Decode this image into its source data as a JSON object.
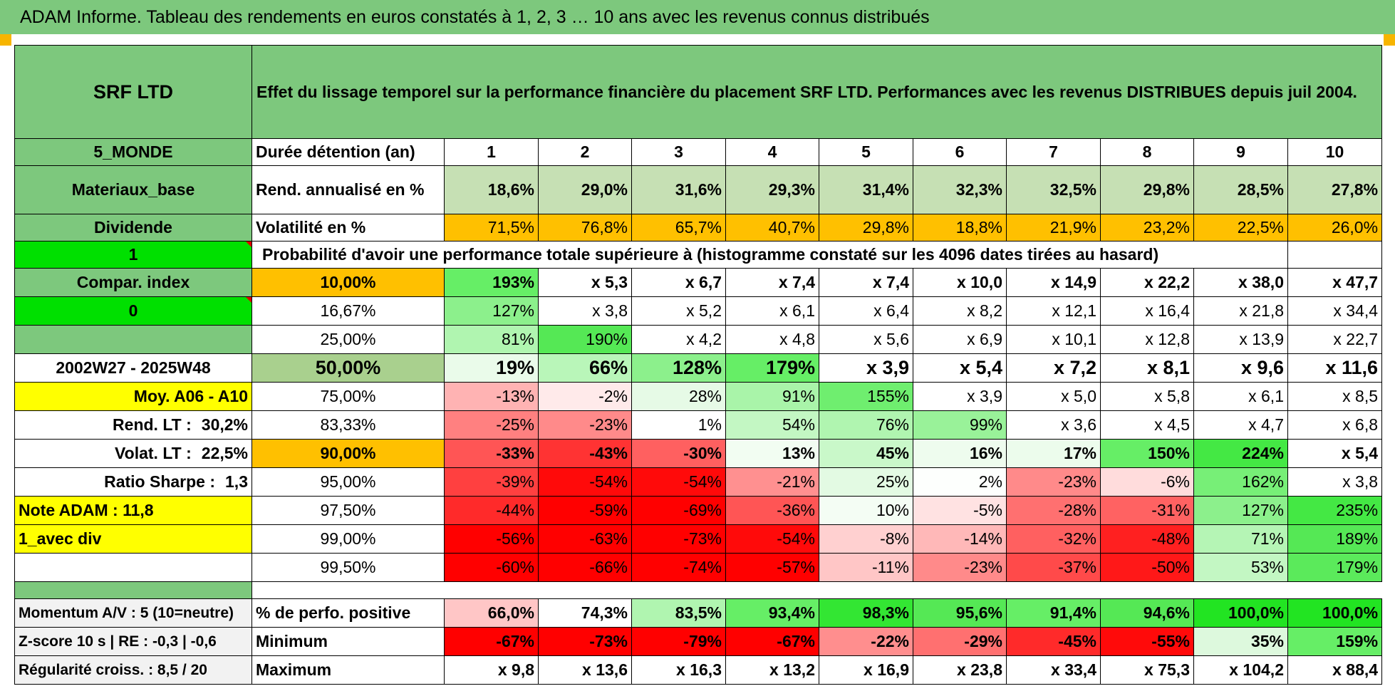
{
  "title": "ADAM Informe. Tableau des rendements en euros constatés à 1, 2, 3 … 10 ans avec les revenus connus distribués",
  "colors": {
    "header_green": "#7dc87d",
    "bright_green": "#00e000",
    "yellow": "#ffff00",
    "orange": "#ffc000",
    "light_green_cell": "#c6e0b4",
    "red_text": "#e00000"
  },
  "header": {
    "fund": "SRF LTD",
    "description": "Effet du lissage temporel sur la performance financière du placement SRF LTD. Performances avec les revenus DISTRIBUES depuis juil 2004."
  },
  "left_col": {
    "region": "5_MONDE",
    "sector": "Materiaux_base",
    "income": "Dividende",
    "sel1": "1",
    "compar": "Compar. index",
    "sel2": "0",
    "period": "2002W27 - 2025W48",
    "moy": "Moy. A06 - A10",
    "rend_label": "Rend. LT :",
    "rend_value": "30,2%",
    "volat_label": "Volat. LT :",
    "volat_value": "22,5%",
    "sharpe_label": "Ratio Sharpe :",
    "sharpe_value": "1,3",
    "note": "Note ADAM : 11,8",
    "avec": "1_avec div",
    "momentum": "Momentum A/V : 5 (10=neutre)",
    "zscore": "Z-score 10 s | RE : -0,3 | -0,6",
    "regularite": "Régularité croiss. : 8,5 / 20"
  },
  "labels": {
    "duree": "Durée détention (an)",
    "rend": "Rend. annualisé en %",
    "volat": "Volatilité en %",
    "proba": "Probabilité d'avoir une performance totale supérieure à (histogramme constaté sur les 4096 dates tirées au hasard)",
    "positive": "% de perfo. positive",
    "minimum": "Minimum",
    "maximum": "Maximum"
  },
  "years": [
    "1",
    "2",
    "3",
    "4",
    "5",
    "6",
    "7",
    "8",
    "9",
    "10"
  ],
  "rend": [
    "18,6%",
    "29,0%",
    "31,6%",
    "29,3%",
    "31,4%",
    "32,3%",
    "32,5%",
    "29,8%",
    "28,5%",
    "27,8%"
  ],
  "volat": [
    "71,5%",
    "76,8%",
    "65,7%",
    "40,7%",
    "29,8%",
    "18,8%",
    "21,9%",
    "23,2%",
    "22,5%",
    "26,0%"
  ],
  "proba_rows": [
    {
      "pct": "10,00%",
      "vals": [
        "193%",
        "x 5,3",
        "x 6,7",
        "x 7,4",
        "x 7,4",
        "x 10,0",
        "x 14,9",
        "x 22,2",
        "x 38,0",
        "x 47,7"
      ],
      "colors": [
        "#66ee66",
        "#fff",
        "#fff",
        "#fff",
        "#fff",
        "#fff",
        "#fff",
        "#fff",
        "#fff",
        "#fff"
      ]
    },
    {
      "pct": "16,67%",
      "vals": [
        "127%",
        "x 3,8",
        "x 5,2",
        "x 6,1",
        "x 6,4",
        "x 8,2",
        "x 12,1",
        "x 16,4",
        "x 21,8",
        "x 34,4"
      ],
      "colors": [
        "#8cf08c",
        "#fff",
        "#fff",
        "#fff",
        "#fff",
        "#fff",
        "#fff",
        "#fff",
        "#fff",
        "#fff"
      ]
    },
    {
      "pct": "25,00%",
      "vals": [
        "81%",
        "190%",
        "x 4,2",
        "x 4,8",
        "x 5,6",
        "x 6,9",
        "x 10,1",
        "x 12,8",
        "x 13,9",
        "x 22,7"
      ],
      "colors": [
        "#b0f5b0",
        "#55e855",
        "#fff",
        "#fff",
        "#fff",
        "#fff",
        "#fff",
        "#fff",
        "#fff",
        "#fff"
      ]
    },
    {
      "pct": "50,00%",
      "vals": [
        "19%",
        "66%",
        "128%",
        "179%",
        "x 3,9",
        "x 5,4",
        "x 7,2",
        "x 8,1",
        "x 9,6",
        "x 11,6"
      ],
      "colors": [
        "#eafbea",
        "#b9f6b9",
        "#8cf08c",
        "#66ee66",
        "#fff",
        "#fff",
        "#fff",
        "#fff",
        "#fff",
        "#fff"
      ]
    },
    {
      "pct": "75,00%",
      "vals": [
        "-13%",
        "-2%",
        "28%",
        "91%",
        "155%",
        "x 3,9",
        "x 5,0",
        "x 5,8",
        "x 6,1",
        "x 8,5"
      ],
      "colors": [
        "#ffb3b3",
        "#ffeaea",
        "#e6fae6",
        "#a9f4a9",
        "#6fee6f",
        "#fff",
        "#fff",
        "#fff",
        "#fff",
        "#fff"
      ]
    },
    {
      "pct": "83,33%",
      "vals": [
        "-25%",
        "-23%",
        "1%",
        "54%",
        "76%",
        "99%",
        "x 3,6",
        "x 4,5",
        "x 4,7",
        "x 6,8"
      ],
      "colors": [
        "#ff8080",
        "#ff8a8a",
        "#ffffff",
        "#c3f7c3",
        "#b0f5b0",
        "#99f299",
        "#fff",
        "#fff",
        "#fff",
        "#fff"
      ]
    },
    {
      "pct": "90,00%",
      "vals": [
        "-33%",
        "-43%",
        "-30%",
        "13%",
        "45%",
        "16%",
        "17%",
        "150%",
        "224%",
        "x 5,4"
      ],
      "colors": [
        "#ff5555",
        "#ff3333",
        "#ff6060",
        "#f2fdf2",
        "#c9f8c9",
        "#eefcee",
        "#ecfcec",
        "#66ee66",
        "#44e844",
        "#fff"
      ]
    },
    {
      "pct": "95,00%",
      "vals": [
        "-39%",
        "-54%",
        "-54%",
        "-21%",
        "25%",
        "2%",
        "-23%",
        "-6%",
        "162%",
        "x 3,8"
      ],
      "colors": [
        "#ff4040",
        "#ff0a0a",
        "#ff0a0a",
        "#ff9090",
        "#e3fae3",
        "#fdfffd",
        "#ff8a8a",
        "#ffdcdc",
        "#77ef77",
        "#fff"
      ]
    },
    {
      "pct": "97,50%",
      "vals": [
        "-44%",
        "-59%",
        "-69%",
        "-36%",
        "10%",
        "-5%",
        "-28%",
        "-31%",
        "127%",
        "235%"
      ],
      "colors": [
        "#ff2a2a",
        "#ff0000",
        "#ff0000",
        "#ff5555",
        "#f4fdf4",
        "#ffe2e2",
        "#ff7070",
        "#ff6262",
        "#8cf08c",
        "#44e844"
      ]
    },
    {
      "pct": "99,00%",
      "vals": [
        "-56%",
        "-63%",
        "-73%",
        "-54%",
        "-8%",
        "-14%",
        "-32%",
        "-48%",
        "71%",
        "189%"
      ],
      "colors": [
        "#ff0000",
        "#ff0000",
        "#ff0000",
        "#ff0a0a",
        "#ffd0d0",
        "#ffb8b8",
        "#ff6060",
        "#ff2020",
        "#b5f5b5",
        "#55e855"
      ]
    },
    {
      "pct": "99,50%",
      "vals": [
        "-60%",
        "-66%",
        "-74%",
        "-57%",
        "-11%",
        "-23%",
        "-37%",
        "-50%",
        "53%",
        "179%"
      ],
      "colors": [
        "#ff0000",
        "#ff0000",
        "#ff0000",
        "#ff0000",
        "#ffc6c6",
        "#ff8a8a",
        "#ff4a4a",
        "#ff1818",
        "#c3f7c3",
        "#5bea5b"
      ]
    }
  ],
  "positive": [
    "66,0%",
    "74,3%",
    "83,5%",
    "93,4%",
    "98,3%",
    "95,6%",
    "91,4%",
    "94,6%",
    "100,0%",
    "100,0%"
  ],
  "positive_colors": [
    "#ffc6c6",
    "#ffffff",
    "#b0f5b0",
    "#66ee66",
    "#33e633",
    "#55e855",
    "#66ee66",
    "#55e855",
    "#22e422",
    "#22e422"
  ],
  "minimum": [
    "-67%",
    "-73%",
    "-79%",
    "-67%",
    "-22%",
    "-29%",
    "-45%",
    "-55%",
    "35%",
    "159%"
  ],
  "minimum_colors": [
    "#ff0000",
    "#ff0000",
    "#ff0000",
    "#ff0000",
    "#ff8e8e",
    "#ff7070",
    "#ff2a2a",
    "#ff0a0a",
    "#ddf9dd",
    "#66ee66"
  ],
  "maximum": [
    "x 9,8",
    "x 13,6",
    "x 16,3",
    "x 13,2",
    "x 16,9",
    "x 23,8",
    "x 33,4",
    "x 75,3",
    "x 104,2",
    "x 88,4"
  ]
}
